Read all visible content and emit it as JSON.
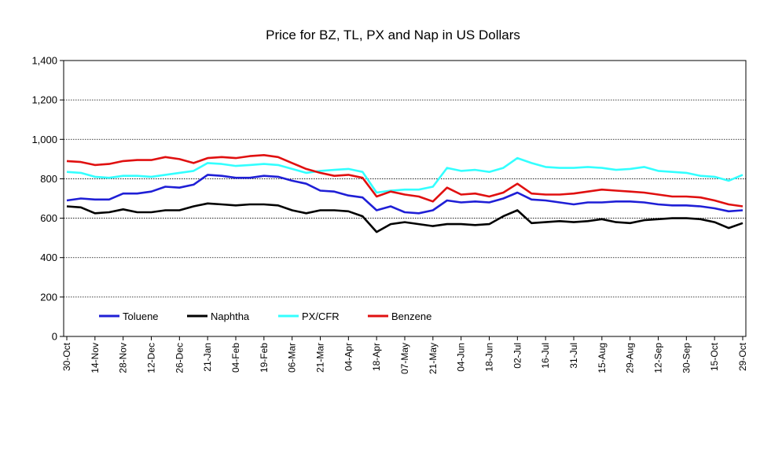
{
  "chart_data": {
    "type": "line",
    "title": "Price for BZ, TL, PX and Nap in US Dollars",
    "xlabel": "",
    "ylabel": "",
    "ylim": [
      0,
      1400
    ],
    "yticks": [
      0,
      200,
      400,
      600,
      800,
      1000,
      1200,
      1400
    ],
    "ytick_labels": [
      "0",
      "200",
      "400",
      "600",
      "800",
      "1,000",
      "1,200",
      "1,400"
    ],
    "grid": "horizontal dotted",
    "legend": "bottom-left inside",
    "x_labels": [
      "30-Oct",
      "14-Nov",
      "28-Nov",
      "12-Dec",
      "26-Dec",
      "21-Jan",
      "04-Feb",
      "19-Feb",
      "06-Mar",
      "21-Mar",
      "04-Apr",
      "18-Apr",
      "07-May",
      "21-May",
      "04-Jun",
      "18-Jun",
      "02-Jul",
      "16-Jul",
      "31-Jul",
      "15-Aug",
      "29-Aug",
      "12-Sep",
      "30-Sep",
      "15-Oct",
      "29-Oct"
    ],
    "x": [
      0,
      0.5,
      1,
      1.5,
      2,
      2.5,
      3,
      3.5,
      4,
      4.5,
      5,
      5.5,
      6,
      6.5,
      7,
      7.5,
      8,
      8.5,
      9,
      9.5,
      10,
      10.5,
      11,
      11.5,
      12,
      12.5,
      13,
      13.5,
      14,
      14.5,
      15,
      15.5,
      16,
      16.5,
      17,
      17.5,
      18,
      18.5,
      19,
      19.5,
      20,
      20.5,
      21,
      21.5,
      22,
      22.5,
      23,
      23.5,
      24
    ],
    "series": [
      {
        "name": "Toluene",
        "color": "#1f1fd6",
        "values": [
          690,
          700,
          695,
          695,
          725,
          725,
          735,
          760,
          755,
          770,
          820,
          815,
          805,
          805,
          815,
          810,
          790,
          775,
          740,
          735,
          715,
          705,
          640,
          660,
          630,
          625,
          640,
          690,
          680,
          685,
          680,
          700,
          730,
          695,
          690,
          680,
          670,
          680,
          680,
          685,
          685,
          680,
          670,
          665,
          665,
          660,
          650,
          635,
          640
        ]
      },
      {
        "name": "Naphtha",
        "color": "#000000",
        "values": [
          660,
          655,
          625,
          630,
          645,
          630,
          630,
          640,
          640,
          660,
          675,
          670,
          665,
          670,
          670,
          665,
          640,
          625,
          640,
          640,
          635,
          610,
          530,
          570,
          580,
          570,
          560,
          570,
          570,
          565,
          570,
          610,
          640,
          575,
          580,
          585,
          580,
          585,
          595,
          580,
          575,
          590,
          595,
          600,
          600,
          595,
          580,
          550,
          575
        ]
      },
      {
        "name": "PX/CFR",
        "color": "#33ffff",
        "values": [
          835,
          830,
          810,
          805,
          815,
          815,
          810,
          820,
          830,
          840,
          880,
          875,
          865,
          870,
          875,
          870,
          850,
          830,
          840,
          845,
          850,
          835,
          730,
          740,
          745,
          745,
          760,
          855,
          840,
          845,
          835,
          855,
          905,
          880,
          860,
          855,
          855,
          860,
          855,
          845,
          850,
          860,
          840,
          835,
          830,
          815,
          810,
          790,
          820
        ]
      },
      {
        "name": "Benzene",
        "color": "#e01010",
        "values": [
          890,
          885,
          870,
          875,
          890,
          895,
          895,
          910,
          900,
          880,
          905,
          910,
          905,
          915,
          920,
          910,
          880,
          850,
          830,
          815,
          820,
          805,
          710,
          735,
          720,
          710,
          685,
          755,
          720,
          725,
          710,
          730,
          775,
          725,
          720,
          720,
          725,
          735,
          745,
          740,
          735,
          730,
          720,
          710,
          710,
          705,
          690,
          670,
          660
        ]
      }
    ]
  }
}
